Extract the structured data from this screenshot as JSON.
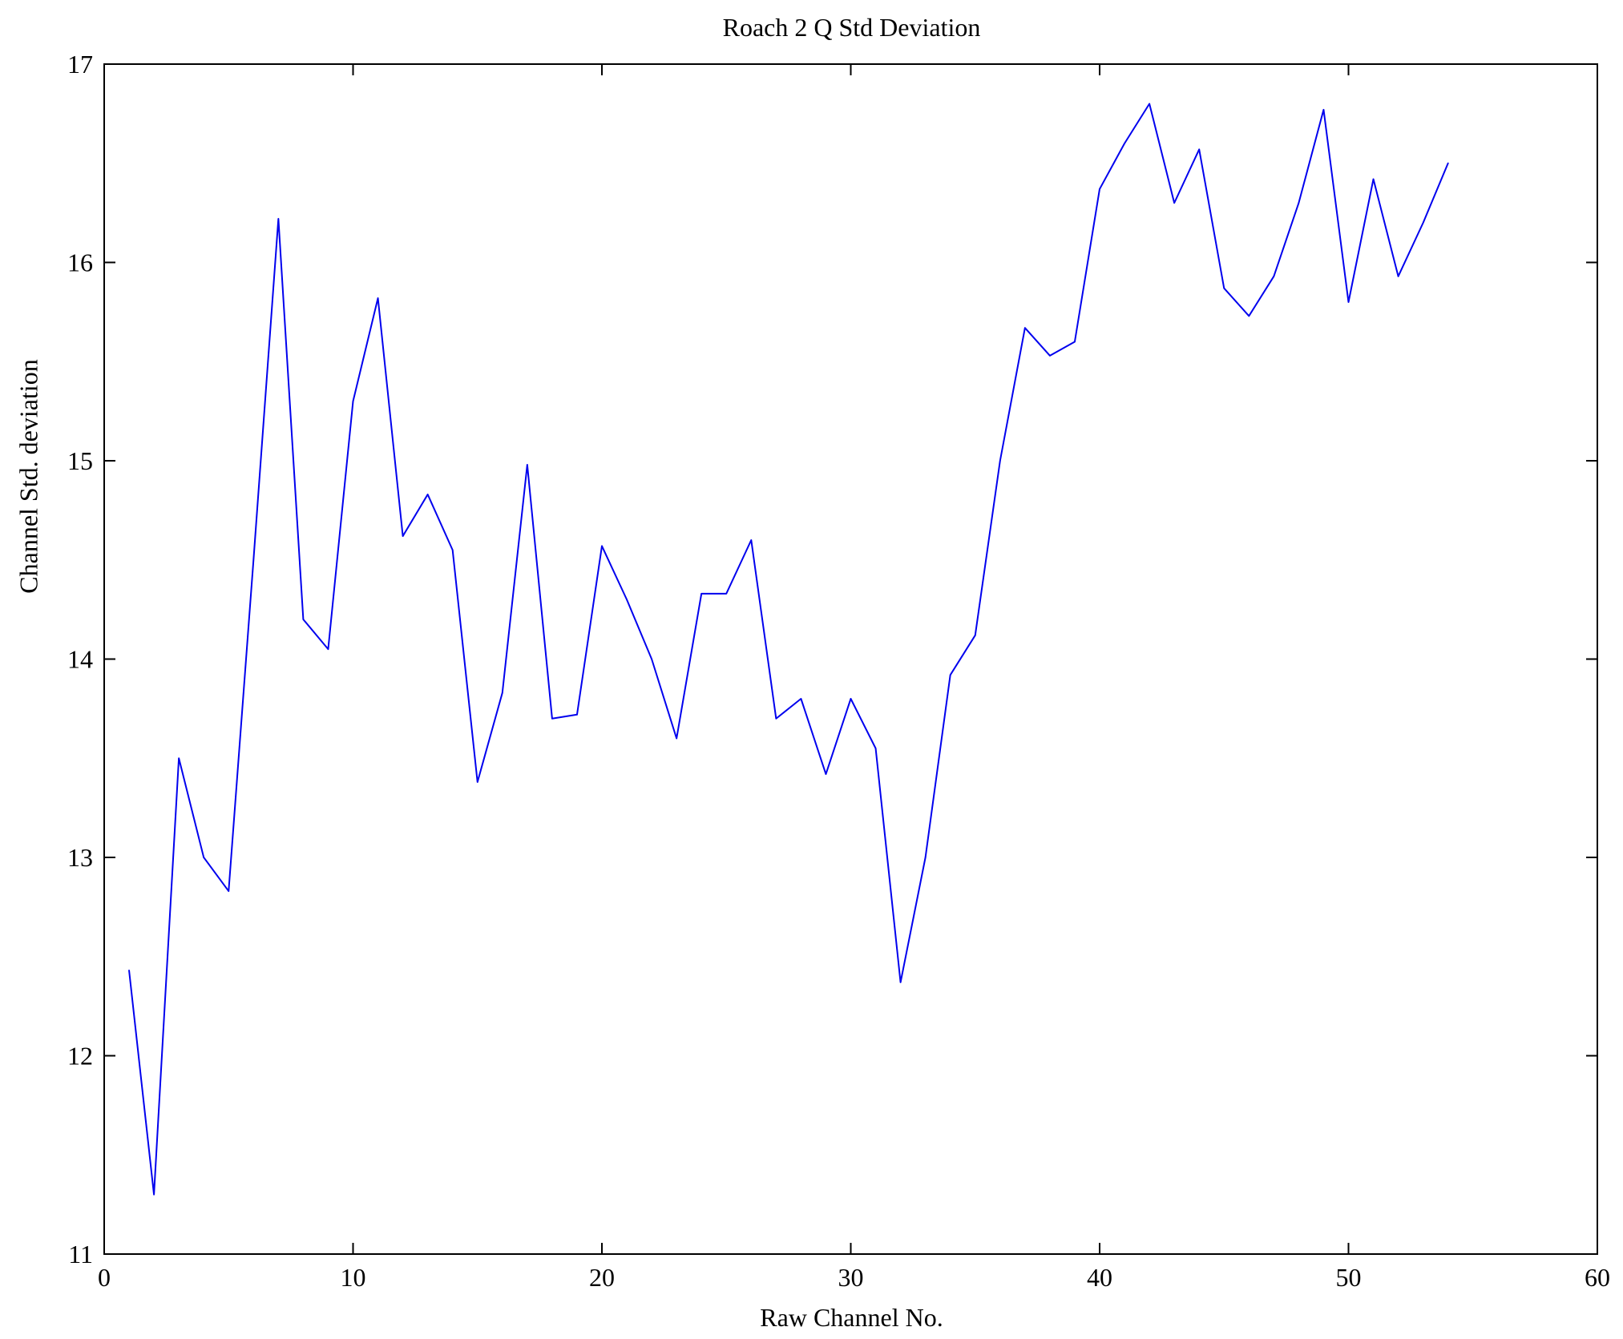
{
  "chart_data": {
    "type": "line",
    "title": "Roach 2 Q Std Deviation",
    "xlabel": "Raw Channel No.",
    "ylabel": "Channel Std. deviation",
    "xlim": [
      0,
      60
    ],
    "ylim": [
      11,
      17
    ],
    "xticks": [
      0,
      10,
      20,
      30,
      40,
      50,
      60
    ],
    "yticks": [
      11,
      12,
      13,
      14,
      15,
      16,
      17
    ],
    "grid": false,
    "legend": null,
    "line_color": "#0000ee",
    "frame_color": "#000000",
    "series": [
      {
        "name": "Channel Std. deviation",
        "x": [
          1,
          2,
          3,
          4,
          5,
          6,
          7,
          8,
          9,
          10,
          11,
          12,
          13,
          14,
          15,
          16,
          17,
          18,
          19,
          20,
          21,
          22,
          23,
          24,
          25,
          26,
          27,
          28,
          29,
          30,
          31,
          32,
          33,
          34,
          35,
          36,
          37,
          38,
          39,
          40,
          41,
          42,
          43,
          44,
          45,
          46,
          47,
          48,
          49,
          50,
          51,
          52,
          53,
          54
        ],
        "values": [
          12.43,
          11.3,
          13.5,
          13.0,
          12.83,
          14.5,
          16.22,
          14.2,
          14.05,
          15.3,
          15.82,
          14.62,
          14.83,
          14.55,
          13.38,
          13.83,
          14.98,
          13.7,
          13.72,
          14.57,
          14.3,
          14.0,
          13.6,
          14.33,
          14.33,
          14.6,
          13.7,
          13.8,
          13.42,
          13.8,
          13.55,
          12.37,
          13.0,
          13.92,
          14.12,
          15.0,
          15.67,
          15.53,
          15.6,
          16.37,
          16.6,
          16.8,
          16.3,
          16.57,
          15.87,
          15.73,
          15.93,
          16.3,
          16.77,
          15.8,
          16.42,
          15.93,
          16.2,
          16.5
        ]
      }
    ]
  }
}
